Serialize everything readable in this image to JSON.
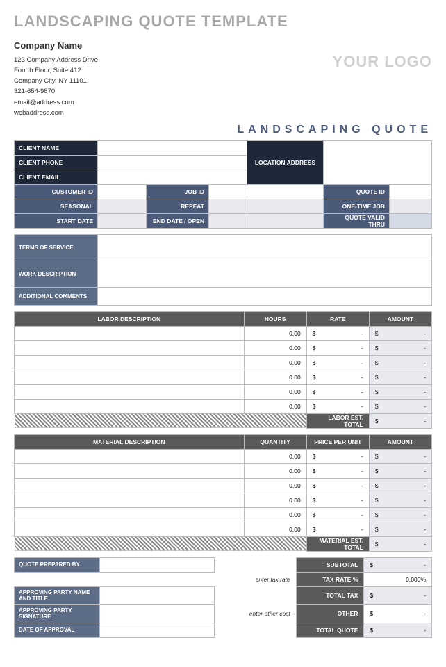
{
  "title": "LANDSCAPING QUOTE TEMPLATE",
  "company": {
    "name": "Company Name",
    "addr1": "123 Company Address Drive",
    "addr2": "Fourth Floor, Suite 412",
    "addr3": "Company City, NY 11101",
    "phone": "321-654-9870",
    "email": "email@address.com",
    "web": "webaddress.com"
  },
  "logo": "YOUR LOGO",
  "subtitle": "LANDSCAPING QUOTE",
  "client": {
    "name_label": "CLIENT NAME",
    "phone_label": "CLIENT PHONE",
    "email_label": "CLIENT EMAIL",
    "location_label": "LOCATION ADDRESS",
    "customer_id_label": "CUSTOMER ID",
    "job_id_label": "JOB ID",
    "quote_id_label": "QUOTE ID",
    "seasonal_label": "SEASONAL",
    "repeat_label": "REPEAT",
    "onetime_label": "ONE-TIME JOB",
    "start_label": "START DATE",
    "end_label": "END DATE / OPEN",
    "valid_label": "QUOTE VALID THRU"
  },
  "sections": {
    "terms": "TERMS OF SERVICE",
    "work": "WORK DESCRIPTION",
    "comments": "ADDITIONAL COMMENTS"
  },
  "labor": {
    "headers": [
      "LABOR DESCRIPTION",
      "HOURS",
      "RATE",
      "AMOUNT"
    ],
    "rows": [
      {
        "hours": "0.00",
        "rate": "$",
        "amount": "$"
      },
      {
        "hours": "0.00",
        "rate": "$",
        "amount": "$"
      },
      {
        "hours": "0.00",
        "rate": "$",
        "amount": "$"
      },
      {
        "hours": "0.00",
        "rate": "$",
        "amount": "$"
      },
      {
        "hours": "0.00",
        "rate": "$",
        "amount": "$"
      },
      {
        "hours": "0.00",
        "rate": "$",
        "amount": "$"
      }
    ],
    "total_label": "LABOR EST. TOTAL",
    "total_value": "$"
  },
  "material": {
    "headers": [
      "MATERIAL DESCRIPTION",
      "QUANTITY",
      "PRICE PER UNIT",
      "AMOUNT"
    ],
    "rows": [
      {
        "qty": "0.00",
        "price": "$",
        "amount": "$"
      },
      {
        "qty": "0.00",
        "price": "$",
        "amount": "$"
      },
      {
        "qty": "0.00",
        "price": "$",
        "amount": "$"
      },
      {
        "qty": "0.00",
        "price": "$",
        "amount": "$"
      },
      {
        "qty": "0.00",
        "price": "$",
        "amount": "$"
      },
      {
        "qty": "0.00",
        "price": "$",
        "amount": "$"
      }
    ],
    "total_label": "MATERIAL EST. TOTAL",
    "total_value": "$"
  },
  "footer": {
    "prepared_label": "QUOTE PREPARED BY",
    "tax_hint": "enter tax rate",
    "other_hint": "enter other cost",
    "approving_name": "APPROVING PARTY NAME AND TITLE",
    "approving_sig": "APPROVING PARTY SIGNATURE",
    "approval_date": "DATE OF APPROVAL",
    "subtotal": "SUBTOTAL",
    "taxrate": "TAX RATE %",
    "taxrate_val": "0.000%",
    "totaltax": "TOTAL TAX",
    "other": "OTHER",
    "totalquote": "TOTAL QUOTE",
    "dash": "$"
  },
  "colors": {
    "dark": "#1e2838",
    "blue": "#4a5a78",
    "gray": "#5a5a5a",
    "title_gray": "#a8a8a8"
  }
}
